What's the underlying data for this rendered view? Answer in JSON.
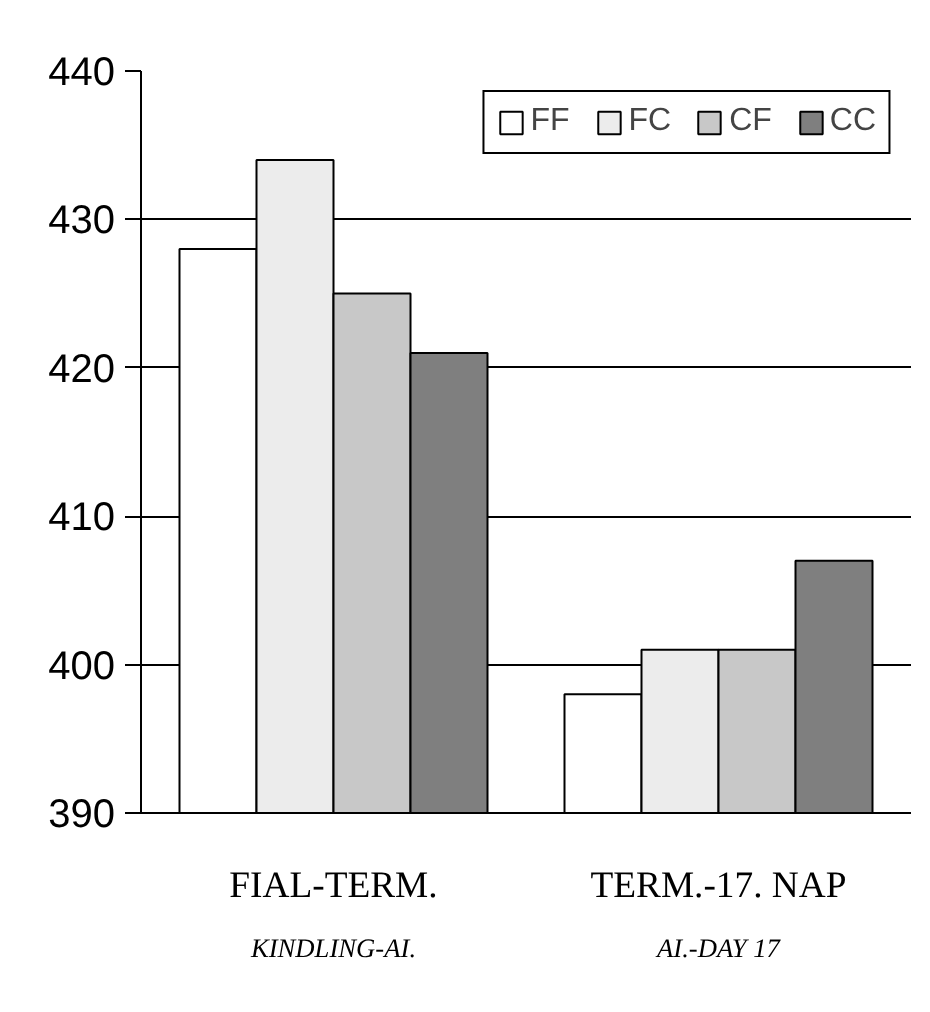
{
  "chart_data": {
    "type": "bar",
    "categories": [
      "FIAL-TERM.",
      "TERM.-17. NAP"
    ],
    "series": [
      {
        "name": "FF",
        "color": "#ffffff",
        "values": [
          428,
          398
        ]
      },
      {
        "name": "FC",
        "color": "#ececec",
        "values": [
          434,
          401
        ]
      },
      {
        "name": "CF",
        "color": "#c8c8c8",
        "values": [
          425,
          401
        ]
      },
      {
        "name": "CC",
        "color": "#7f7f7f",
        "values": [
          421,
          407
        ]
      }
    ],
    "ylim": [
      390,
      440
    ],
    "yticks": [
      390,
      400,
      410,
      420,
      430,
      440
    ],
    "grid": "y",
    "legend": "top right",
    "annotations": [
      "KINDLING-AI.",
      "AI.-DAY 17"
    ]
  }
}
